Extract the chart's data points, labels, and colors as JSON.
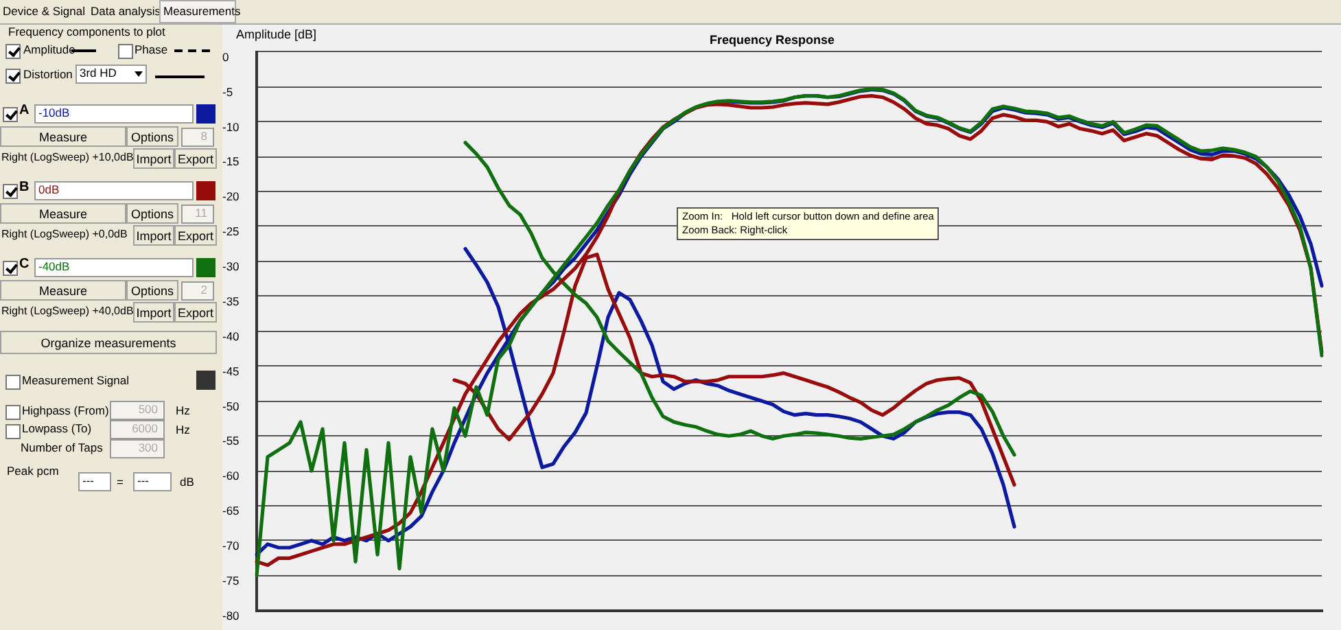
{
  "chart_data": {
    "type": "line",
    "title": "Frequency Response",
    "ylabel": "Amplitude [dB]",
    "categories": [
      null,
      null,
      null,
      null,
      null,
      null,
      null,
      null,
      null,
      null,
      null,
      null,
      null,
      null,
      null,
      null,
      null,
      null,
      null,
      null,
      null,
      null,
      null,
      null,
      null,
      null,
      null,
      null,
      null,
      null,
      null,
      null,
      null,
      null,
      null,
      null,
      null,
      null,
      null,
      null,
      null,
      null,
      null,
      null,
      null,
      null,
      null,
      null,
      null,
      null,
      null,
      null,
      null,
      null,
      null,
      null,
      null,
      null,
      null,
      null,
      null,
      null,
      null,
      null,
      null,
      null,
      null,
      null,
      null,
      null,
      null,
      null,
      null,
      null,
      null,
      null,
      null,
      null,
      null,
      null,
      null,
      null,
      null,
      null,
      null,
      null,
      null,
      null,
      null,
      null,
      null,
      null,
      null,
      null,
      null,
      null,
      null,
      null
    ],
    "ylim": [
      -80,
      0
    ],
    "yticks": [
      0,
      -5,
      -10,
      -15,
      -20,
      -25,
      -30,
      -35,
      -40,
      -45,
      -50,
      -55,
      -60,
      -65,
      -70,
      -75,
      -80
    ],
    "grid": "y",
    "legend": "left",
    "line_style": "solid",
    "marker": "none",
    "series": [
      {
        "name": "-40dB",
        "color": "#107010",
        "values": [
          -75,
          -58,
          -57,
          -56,
          -53,
          -60,
          -54,
          -70,
          -56,
          -73,
          -57,
          -72,
          -56,
          -74,
          -58,
          -66,
          -54,
          -60,
          -51,
          -55,
          -48,
          -52,
          -44,
          -42,
          -38.5,
          -36.5,
          -34.5,
          -32.5,
          -30.5,
          -28.5,
          -26.5,
          -24.5,
          -22,
          -19.8,
          -17,
          -14.7,
          -12.8,
          -10.9,
          -9.8,
          -8.7,
          -7.9,
          -7.4,
          -7.1,
          -7,
          -7.1,
          -7.2,
          -7.2,
          -7.1,
          -6.9,
          -6.5,
          -6.3,
          -6.3,
          -6.5,
          -6.3,
          -5.9,
          -5.5,
          -5.3,
          -5.4,
          -5.9,
          -6.9,
          -8.4,
          -9.1,
          -9.4,
          -10.1,
          -10.9,
          -11.4,
          -10.1,
          -8.2,
          -7.8,
          -8.1,
          -8.5,
          -8.6,
          -8.8,
          -9.4,
          -9.2,
          -9.8,
          -10.3,
          -10.6,
          -10,
          -11.6,
          -11.1,
          -10.5,
          -10.6,
          -11.6,
          -12.6,
          -13.6,
          -14.2,
          -14.1,
          -13.8,
          -14,
          -14.4,
          -15,
          -16.5,
          -18.5,
          -21.5,
          -25,
          -31,
          -43.5
        ]
      },
      {
        "name": "0dB",
        "color": "#980c0c",
        "values": [
          -73,
          -73.5,
          -72.5,
          -72.5,
          -72,
          -71.5,
          -71,
          -70.5,
          -70.5,
          -70,
          -69.5,
          -69,
          -68.5,
          -67.5,
          -66,
          -63,
          -59.5,
          -56,
          -52.5,
          -49,
          -46.5,
          -44,
          -41.5,
          -39.5,
          -37.5,
          -36,
          -35,
          -34,
          -32.5,
          -31,
          -29,
          -26.5,
          -23.5,
          -20,
          -17,
          -14.5,
          -12.5,
          -10.8,
          -9.7,
          -8.8,
          -8,
          -7.6,
          -7.5,
          -7.6,
          -7.8,
          -8,
          -8,
          -7.9,
          -7.6,
          -7.4,
          -7.3,
          -7.4,
          -7.5,
          -7.2,
          -6.8,
          -6.4,
          -6.3,
          -6.5,
          -7.2,
          -8.2,
          -9.5,
          -10.3,
          -10.5,
          -11,
          -12,
          -12.5,
          -11.3,
          -9.5,
          -9,
          -9.3,
          -9.8,
          -9.8,
          -10,
          -10.7,
          -10.3,
          -11,
          -11.3,
          -11.7,
          -11.2,
          -12.7,
          -12.2,
          -11.7,
          -12,
          -13,
          -14,
          -14.8,
          -15.3,
          -15.4,
          -14.8,
          -14.9,
          -15.2,
          -16,
          -17.5,
          -19.5,
          -22,
          -25.5,
          -31,
          -43
        ]
      },
      {
        "name": "-10dB",
        "color": "#0c1aa0",
        "values": [
          -72,
          -70.5,
          -71,
          -71,
          -70.5,
          -70,
          -70.5,
          -69.5,
          -70,
          -69.5,
          -70,
          -69,
          -70,
          -69,
          -68,
          -66.5,
          -63,
          -60,
          -56,
          -52.5,
          -49,
          -46,
          -43.5,
          -41,
          -38.5,
          -36.5,
          -34.5,
          -33,
          -31,
          -29.5,
          -27.5,
          -25.5,
          -23,
          -20.5,
          -17.5,
          -15,
          -13,
          -11,
          -10,
          -8.8,
          -8,
          -7.5,
          -7.2,
          -7.1,
          -7.2,
          -7.3,
          -7.3,
          -7.2,
          -7,
          -6.5,
          -6.3,
          -6.3,
          -6.5,
          -6.4,
          -6,
          -5.6,
          -5.4,
          -5.5,
          -6,
          -7,
          -8.5,
          -9.2,
          -9.5,
          -10.2,
          -11,
          -11.5,
          -10.3,
          -8.5,
          -8,
          -8.3,
          -8.7,
          -8.8,
          -9,
          -9.6,
          -9.4,
          -10,
          -10.5,
          -10.8,
          -10.2,
          -11.8,
          -11.4,
          -10.8,
          -11,
          -12,
          -13,
          -14,
          -14.6,
          -14.7,
          -14.2,
          -14.2,
          -14.6,
          -15.3,
          -16.5,
          -18.2,
          -20.5,
          -23.5,
          -27.5,
          -33.5
        ]
      },
      {
        "color": "#107010",
        "values": [
          null,
          null,
          null,
          null,
          null,
          null,
          null,
          null,
          null,
          null,
          null,
          null,
          null,
          null,
          null,
          null,
          null,
          null,
          null,
          -13,
          -14.6,
          -16.5,
          -19.5,
          -22,
          -23.3,
          -26,
          -29.5,
          -31.5,
          -33.2,
          -34.8,
          -36,
          -38,
          -41.4,
          -43,
          -44.5,
          -46,
          -49.5,
          -52.2,
          -53,
          -53.4,
          -53.7,
          -54.3,
          -54.8,
          -55,
          -54.8,
          -54.3,
          -55,
          -55.4,
          -55,
          -54.8,
          -54.5,
          -54.6,
          -54.8,
          -55,
          -55.3,
          -55.4,
          -55.2,
          -55,
          -54.8,
          -54,
          -53,
          -52.2,
          -51.3,
          -50.6,
          -49.5,
          -48.6,
          -49.2,
          -51.5,
          -55,
          -57.7,
          null,
          null,
          null,
          null,
          null,
          null,
          null,
          null,
          null,
          null,
          null,
          null,
          null,
          null,
          null,
          null,
          null,
          null,
          null,
          null,
          null,
          null,
          null,
          null,
          null,
          null,
          null,
          null
        ]
      },
      {
        "color": "#980c0c",
        "values": [
          null,
          null,
          null,
          null,
          null,
          null,
          null,
          null,
          null,
          null,
          null,
          null,
          null,
          null,
          null,
          null,
          null,
          null,
          -47,
          -47.5,
          -49,
          -51.5,
          -54,
          -55.5,
          -53.5,
          -51.5,
          -49,
          -46,
          -40,
          -33.5,
          -29.5,
          -29,
          -34,
          -37.5,
          -41,
          -46,
          -46.5,
          -46.3,
          -46.5,
          -47.2,
          -47.2,
          -47.2,
          -47,
          -46.5,
          -46.5,
          -46.5,
          -46.5,
          -46.3,
          -46,
          -46.5,
          -47,
          -47.5,
          -48,
          -48.7,
          -49.5,
          -50.2,
          -51.3,
          -52,
          -51,
          -49.7,
          -48.5,
          -47.5,
          -47,
          -46.8,
          -46.7,
          -47.4,
          -50,
          -54,
          -58,
          -62,
          null,
          null,
          null,
          null,
          null,
          null,
          null,
          null,
          null,
          null,
          null,
          null,
          null,
          null,
          null,
          null,
          null,
          null,
          null,
          null,
          null,
          null,
          null,
          null,
          null,
          null,
          null,
          null
        ]
      },
      {
        "color": "#0c1aa0",
        "values": [
          null,
          null,
          null,
          null,
          null,
          null,
          null,
          null,
          null,
          null,
          null,
          null,
          null,
          null,
          null,
          null,
          null,
          null,
          null,
          -28.2,
          -30.5,
          -33,
          -36.5,
          -42,
          -48,
          -54,
          -59.5,
          -59,
          -56.5,
          -54.5,
          -51.7,
          -45,
          -38,
          -34.5,
          -35.5,
          -38.5,
          -42,
          -47.2,
          -48.3,
          -47.5,
          -47,
          -47.5,
          -47.8,
          -48.5,
          -49,
          -49.5,
          -50,
          -50.5,
          -51.5,
          -52,
          -51.8,
          -52,
          -52,
          -52.2,
          -52.5,
          -53,
          -54,
          -55,
          -55.4,
          -54.5,
          -53,
          -52.3,
          -51.8,
          -51.6,
          -51.6,
          -52,
          -54,
          -57.5,
          -62,
          -68,
          null,
          null,
          null,
          null,
          null,
          null,
          null,
          null,
          null,
          null,
          null,
          null,
          null,
          null,
          null,
          null,
          null,
          null,
          null,
          null,
          null,
          null,
          null,
          null,
          null,
          null,
          null,
          null
        ]
      }
    ],
    "annotations": [
      "Device & Signal",
      "Data analysis",
      "Measurements",
      "Frequency components to plot",
      "Amplitude",
      "Phase",
      "Distortion",
      "3rd HD",
      "A",
      "Measure",
      "Options",
      "8",
      "Right (LogSweep) +10,0dB",
      "Import",
      "Export",
      "B",
      "11",
      "Right (LogSweep) +0,0dB",
      "C",
      "2",
      "Right (LogSweep) +40,0dB",
      "Organize measurements",
      "Measurement Signal",
      "Highpass (From)",
      "500",
      "Hz",
      "Lowpass (To)",
      "6000",
      "Number of Taps",
      "300",
      "Peak pcm",
      "---",
      "=",
      "dB",
      "Zoom In:   Hold left cursor button down and define area",
      "Zoom Back: Right-click"
    ]
  }
}
